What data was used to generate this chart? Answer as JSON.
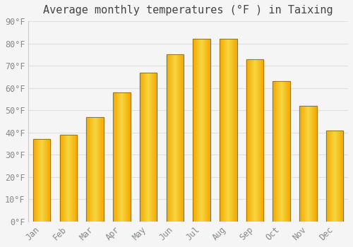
{
  "title": "Average monthly temperatures (°F ) in Taixing",
  "months": [
    "Jan",
    "Feb",
    "Mar",
    "Apr",
    "May",
    "Jun",
    "Jul",
    "Aug",
    "Sep",
    "Oct",
    "Nov",
    "Dec"
  ],
  "values": [
    37,
    39,
    47,
    58,
    67,
    75,
    82,
    82,
    73,
    63,
    52,
    41
  ],
  "bar_color_left": "#F5A800",
  "bar_color_center": "#FFD740",
  "bar_edge_color": "#888855",
  "ylim": [
    0,
    90
  ],
  "yticks": [
    0,
    10,
    20,
    30,
    40,
    50,
    60,
    70,
    80,
    90
  ],
  "ytick_labels": [
    "0°F",
    "10°F",
    "20°F",
    "30°F",
    "40°F",
    "50°F",
    "60°F",
    "70°F",
    "80°F",
    "90°F"
  ],
  "background_color": "#f5f5f5",
  "grid_color": "#e0e0e0",
  "title_fontsize": 11,
  "tick_fontsize": 8.5,
  "tick_color": "#888888",
  "bar_width": 0.65
}
